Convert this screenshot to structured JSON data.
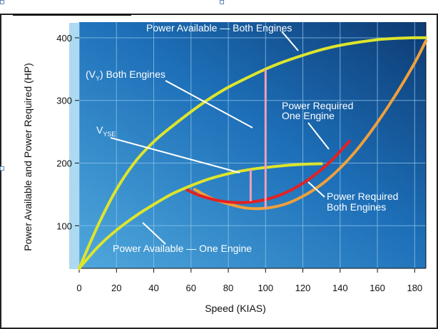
{
  "chart_data": {
    "type": "line",
    "xlabel": "Speed (KIAS)",
    "ylabel": "Power Available and Power Required (HP)",
    "xlim": [
      0,
      186
    ],
    "ylim": [
      32,
      425
    ],
    "x_ticks": [
      "0",
      "20",
      "40",
      "60",
      "80",
      "100",
      "120",
      "140",
      "160",
      "180"
    ],
    "y_ticks": [
      "100",
      "200",
      "300",
      "400"
    ],
    "grid": true,
    "series": [
      {
        "name": "Power Available — Both Engines",
        "color": "#dde52c",
        "x": [
          0,
          10,
          20,
          30,
          40,
          50,
          60,
          70,
          80,
          90,
          100,
          110,
          120,
          130,
          140,
          150,
          160,
          170,
          180,
          186
        ],
        "y": [
          32,
          100,
          158,
          202,
          234,
          259,
          282,
          303,
          321,
          336,
          350,
          362,
          372,
          381,
          388,
          393,
          397,
          399,
          400,
          400
        ]
      },
      {
        "name": "Power Available — One Engine",
        "color": "#dde52c",
        "x": [
          0,
          10,
          20,
          30,
          40,
          50,
          60,
          70,
          80,
          90,
          100,
          110,
          120,
          130
        ],
        "y": [
          32,
          66,
          93,
          115,
          134,
          151,
          164,
          175,
          183,
          189,
          193,
          196,
          198,
          199
        ]
      },
      {
        "name": "Power Required Both Engines",
        "color": "#f0a03c",
        "x": [
          62,
          70,
          80,
          90,
          100,
          110,
          120,
          130,
          140,
          150,
          160,
          170,
          180,
          186
        ],
        "y": [
          158,
          145,
          135,
          128,
          128,
          134,
          147,
          166,
          192,
          225,
          265,
          310,
          360,
          395
        ]
      },
      {
        "name": "Power Required One Engine",
        "color": "#e32121",
        "x": [
          58,
          65,
          75,
          85,
          95,
          105,
          115,
          125,
          135,
          145
        ],
        "y": [
          157,
          148,
          140,
          137,
          139,
          146,
          159,
          178,
          203,
          235
        ]
      }
    ],
    "markers": [
      {
        "label": "VYSE",
        "x": 92,
        "y_from": 139,
        "y_to": 190
      },
      {
        "label": "(VY) Both Engines",
        "x": 100,
        "y_from": 128,
        "y_to": 350
      }
    ],
    "annotations": {
      "pa_both": "Power Available — Both Engines",
      "pa_one": "Power Available — One Engine",
      "vy_left": "(V",
      "vy_sub": "Y",
      "vy_right": ") Both Engines",
      "vyse_main": "V",
      "vyse_sub": "YSE",
      "pr_one_line1": "Power Required",
      "pr_one_line2": "One Engine",
      "pr_both_line1": "Power Required",
      "pr_both_line2": "Both Engines"
    },
    "colors": {
      "background_dark": "#0d3a72",
      "background_light": "#4fa8dc",
      "grid": "#8fc5ea",
      "pink_marker": "#f0a0b8",
      "leader_line": "#ffffff"
    }
  }
}
